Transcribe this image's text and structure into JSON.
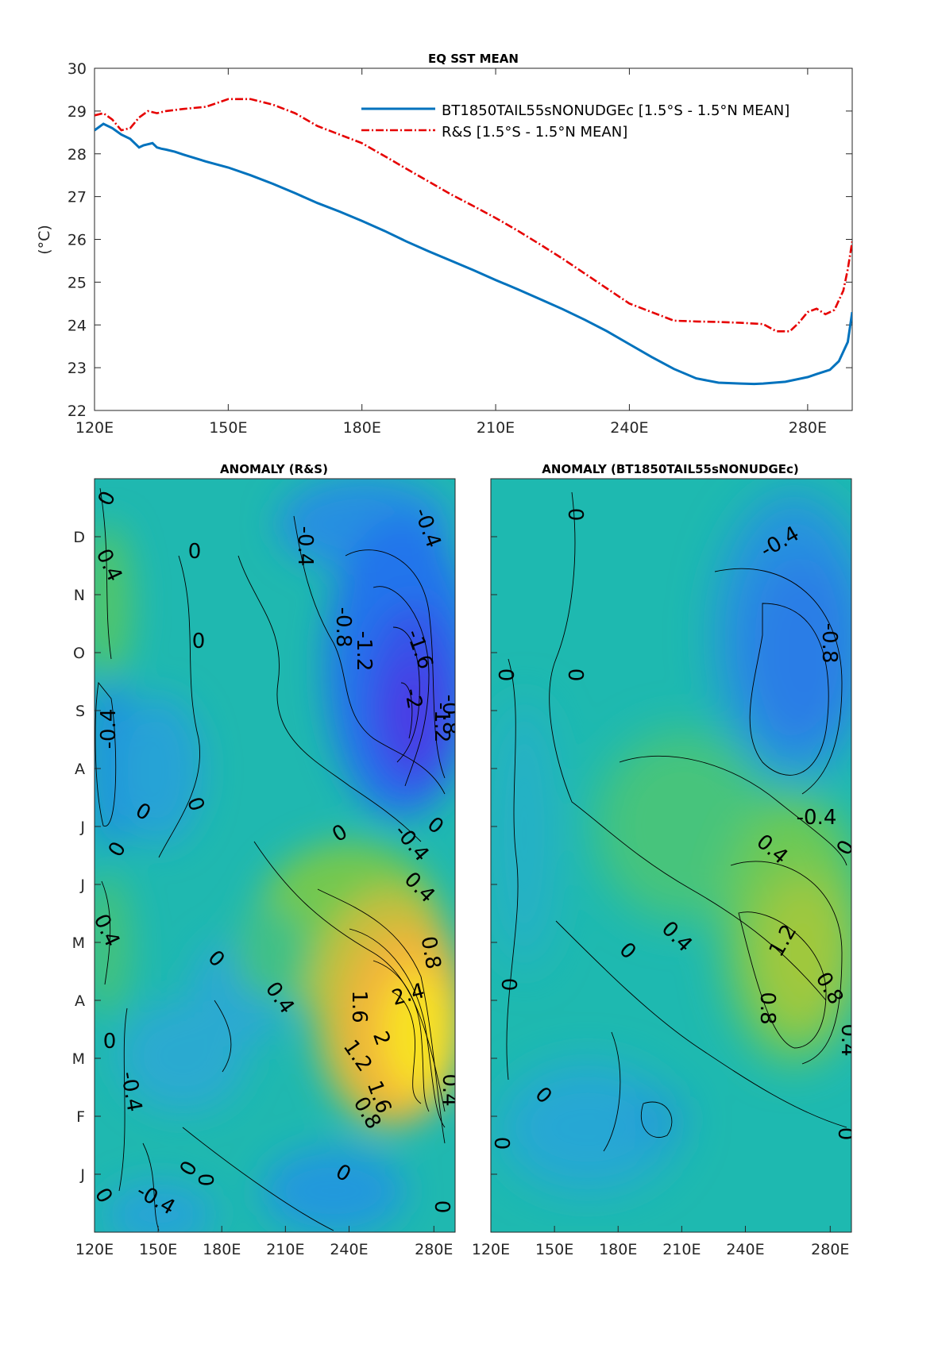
{
  "colors": {
    "model_line": "#0072BD",
    "obs_line": "#E60000",
    "axis": "#262626",
    "contour": "#000000"
  },
  "top_panel": {
    "title": "EQ SST MEAN",
    "ylabel": "(°C)",
    "y_ticks": [
      "22",
      "23",
      "24",
      "25",
      "26",
      "27",
      "28",
      "29",
      "30"
    ],
    "x_ticks": [
      "120E",
      "150E",
      "180E",
      "210E",
      "240E",
      "280E"
    ],
    "legend_location": "top-right"
  },
  "chart_data": [
    {
      "type": "line",
      "title": "EQ SST MEAN",
      "xlabel": "",
      "ylabel": "(°C)",
      "xlim": [
        120,
        290
      ],
      "ylim": [
        22,
        30
      ],
      "grid": false,
      "series": [
        {
          "name": "BT1850TAIL55sNONUDGEc [1.5°S - 1.5°N MEAN]",
          "color": "#0072BD",
          "style": "solid",
          "x": [
            120,
            122,
            124,
            126,
            128,
            130,
            131,
            133,
            134,
            135,
            136,
            138,
            140,
            145,
            150,
            155,
            160,
            165,
            170,
            175,
            180,
            185,
            190,
            195,
            200,
            205,
            210,
            215,
            220,
            225,
            230,
            235,
            240,
            245,
            250,
            255,
            260,
            265,
            268,
            270,
            275,
            280,
            282,
            285,
            287,
            289,
            290
          ],
          "y": [
            28.55,
            28.7,
            28.6,
            28.45,
            28.35,
            28.15,
            28.2,
            28.25,
            28.15,
            28.12,
            28.1,
            28.05,
            27.98,
            27.82,
            27.68,
            27.5,
            27.3,
            27.08,
            26.85,
            26.65,
            26.43,
            26.2,
            25.95,
            25.72,
            25.5,
            25.28,
            25.05,
            24.83,
            24.6,
            24.37,
            24.12,
            23.85,
            23.55,
            23.25,
            22.97,
            22.75,
            22.65,
            22.63,
            22.62,
            22.63,
            22.67,
            22.78,
            22.85,
            22.95,
            23.15,
            23.6,
            24.3
          ]
        },
        {
          "name": "R&S [1.5°S - 1.5°N MEAN]",
          "color": "#E60000",
          "style": "dash-dot",
          "x": [
            120,
            122,
            124,
            126,
            128,
            130,
            132,
            134,
            136,
            140,
            145,
            150,
            155,
            160,
            165,
            170,
            175,
            180,
            185,
            190,
            195,
            200,
            205,
            210,
            215,
            220,
            225,
            230,
            235,
            240,
            245,
            250,
            255,
            260,
            265,
            270,
            273,
            276,
            278,
            280,
            282,
            284,
            286,
            288,
            289,
            290
          ],
          "y": [
            28.9,
            28.95,
            28.8,
            28.55,
            28.6,
            28.85,
            29.0,
            28.95,
            29.0,
            29.05,
            29.1,
            29.28,
            29.28,
            29.15,
            28.95,
            28.65,
            28.45,
            28.25,
            27.95,
            27.65,
            27.35,
            27.05,
            26.78,
            26.5,
            26.2,
            25.88,
            25.55,
            25.2,
            24.85,
            24.5,
            24.3,
            24.1,
            24.08,
            24.07,
            24.05,
            24.02,
            23.85,
            23.85,
            24.05,
            24.3,
            24.38,
            24.25,
            24.35,
            24.8,
            25.3,
            25.95
          ]
        }
      ]
    },
    {
      "type": "heatmap",
      "title": "ANOMALY (R&S)",
      "xlabel": "",
      "ylabel": "",
      "x_ticks": [
        "120E",
        "150E",
        "180E",
        "210E",
        "240E",
        "280E"
      ],
      "y_ticks": [
        "J",
        "F",
        "M",
        "A",
        "M",
        "J",
        "J",
        "A",
        "S",
        "O",
        "N",
        "D"
      ],
      "xlim": [
        120,
        290
      ],
      "colormap": "parula",
      "contour_levels": [
        -2,
        -1.6,
        -1.2,
        -0.8,
        -0.4,
        0,
        0.4,
        0.8,
        1.2,
        1.6,
        2,
        2.4
      ],
      "contour_labels": [
        "0",
        "0.4",
        "0",
        "-0.4",
        "0",
        "-0.4",
        "-0.8",
        "-1.2",
        "-1.6",
        "-2",
        "-1.2",
        "-0.8",
        "-0.4",
        "0",
        "0",
        "0",
        "0",
        "0",
        "-0.4",
        "0.4",
        "0.4",
        "0.8",
        "0",
        "0.4",
        "2.4",
        "1.6",
        "2",
        "1.2",
        "0.8",
        "1.6",
        "0.4",
        "0",
        "-0.4",
        "0",
        "0",
        "0",
        "-0.4",
        "0",
        "0"
      ]
    },
    {
      "type": "heatmap",
      "title": "ANOMALY (BT1850TAIL55sNONUDGEc)",
      "xlabel": "",
      "ylabel": "",
      "x_ticks": [
        "120E",
        "150E",
        "180E",
        "210E",
        "240E",
        "280E"
      ],
      "xlim": [
        120,
        290
      ],
      "colormap": "parula",
      "contour_levels": [
        -0.8,
        -0.4,
        0,
        0.4,
        0.8,
        1.2
      ],
      "contour_labels": [
        "0",
        "-0.4",
        "-0.8",
        "0",
        "0",
        "-0.4",
        "0.4",
        "0",
        "1.2",
        "0.4",
        "0",
        "0.8",
        "0.8",
        "0.4",
        "0",
        "0",
        "0",
        "0"
      ]
    }
  ],
  "left_panel": {
    "title": "ANOMALY (R&S)",
    "month_ticks": [
      "J",
      "F",
      "M",
      "A",
      "M",
      "J",
      "J",
      "A",
      "S",
      "O",
      "N",
      "D"
    ],
    "x_ticks": [
      "120E",
      "150E",
      "180E",
      "210E",
      "240E",
      "280E"
    ]
  },
  "right_panel": {
    "title": "ANOMALY (BT1850TAIL55sNONUDGEc)",
    "x_ticks": [
      "120E",
      "150E",
      "180E",
      "210E",
      "240E",
      "280E"
    ]
  },
  "left_labels": [
    {
      "t": "0",
      "r": -65
    },
    {
      "t": "0.4",
      "r": 65
    },
    {
      "t": "0",
      "r": 0
    },
    {
      "t": "-0.4",
      "r": -90
    },
    {
      "t": "0",
      "r": 0
    },
    {
      "t": "-0.4",
      "r": 70
    },
    {
      "t": "-0.8",
      "r": 90
    },
    {
      "t": "-1.2",
      "r": 90
    },
    {
      "t": "-1.6",
      "r": 70
    },
    {
      "t": "-2",
      "r": 80
    },
    {
      "t": "-1.2",
      "r": 90
    },
    {
      "t": "-0.8",
      "r": 90
    },
    {
      "t": "-0.4",
      "r": 90
    },
    {
      "t": "0",
      "r": 30
    },
    {
      "t": "0",
      "r": 70
    },
    {
      "t": "0",
      "r": -60
    },
    {
      "t": "0",
      "r": -30
    },
    {
      "t": "0",
      "r": 40
    },
    {
      "t": "-0.4",
      "r": 50
    },
    {
      "t": "0.4",
      "r": 65
    },
    {
      "t": "0.4",
      "r": 55
    },
    {
      "t": "0.8",
      "r": 80
    },
    {
      "t": "0",
      "r": 45
    },
    {
      "t": "0.4",
      "r": 45
    },
    {
      "t": "2.4",
      "r": -15
    },
    {
      "t": "1.6",
      "r": 90
    },
    {
      "t": "2",
      "r": 70
    },
    {
      "t": "1.2",
      "r": 55
    },
    {
      "t": "0.8",
      "r": 60
    },
    {
      "t": "1.6",
      "r": 70
    },
    {
      "t": "0.4",
      "r": 90
    },
    {
      "t": "0",
      "r": 0
    },
    {
      "t": "-0.4",
      "r": 80
    },
    {
      "t": "0",
      "r": -60
    },
    {
      "t": "0",
      "r": 90
    },
    {
      "t": "0",
      "r": 30
    },
    {
      "t": "-0.4",
      "r": 30
    },
    {
      "t": "0",
      "r": 60
    },
    {
      "t": "0",
      "r": 90
    }
  ],
  "right_labels": [
    {
      "t": "0",
      "r": 90
    },
    {
      "t": "-0.4",
      "r": -30
    },
    {
      "t": "-0.8",
      "r": 90
    },
    {
      "t": "0",
      "r": 90
    },
    {
      "t": "0",
      "r": 90
    },
    {
      "t": "-0.4",
      "r": 0
    },
    {
      "t": "0.4",
      "r": 40
    },
    {
      "t": "0",
      "r": -60
    },
    {
      "t": "1.2",
      "r": -60
    },
    {
      "t": "0.4",
      "r": 45
    },
    {
      "t": "0",
      "r": 45
    },
    {
      "t": "0.8",
      "r": 60
    },
    {
      "t": "0.8",
      "r": 90
    },
    {
      "t": "0.4",
      "r": 90
    },
    {
      "t": "0",
      "r": 90
    },
    {
      "t": "0",
      "r": 45
    },
    {
      "t": "0",
      "r": 90
    },
    {
      "t": "0",
      "r": -90
    }
  ],
  "legend": [
    "BT1850TAIL55sNONUDGEc [1.5°S - 1.5°N MEAN]",
    "R&S [1.5°S - 1.5°N MEAN]"
  ]
}
